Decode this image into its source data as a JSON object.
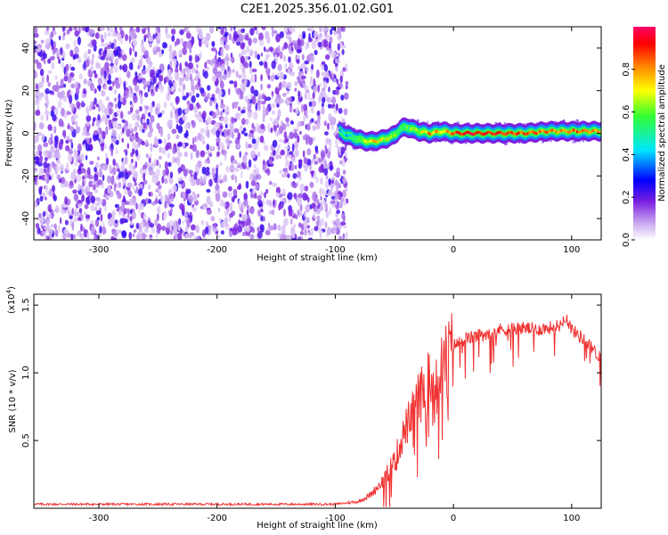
{
  "figure": {
    "title": "C2E1.2025.356.01.02.G01"
  },
  "chart_data": [
    {
      "type": "heatmap",
      "title": "C2E1.2025.356.01.02.G01",
      "xlabel": "Height of straight line (km)",
      "ylabel": "Frequency (Hz)",
      "xlim": [
        -355,
        125
      ],
      "ylim": [
        -50,
        50
      ],
      "xticks": [
        -300,
        -200,
        -100,
        0,
        100
      ],
      "yticks": [
        -40,
        -20,
        0,
        20,
        40
      ],
      "description_series": {
        "noise_region_x": [
          -355,
          -90
        ],
        "ridge": {
          "x": [
            -97,
            -90,
            -80,
            -70,
            -60,
            -50,
            -45,
            -40,
            -30,
            -20,
            -10,
            0,
            20,
            40,
            60,
            80,
            100,
            125
          ],
          "freq": [
            1,
            -1,
            -3,
            -4,
            -3,
            -1,
            2,
            3,
            1,
            0,
            1,
            0,
            0,
            0,
            0,
            1,
            1,
            1
          ],
          "amplitude": [
            0.35,
            0.45,
            0.6,
            0.75,
            0.7,
            0.6,
            0.5,
            0.55,
            0.65,
            0.8,
            0.7,
            0.9,
            0.95,
            0.9,
            0.85,
            0.8,
            0.85,
            0.8
          ]
        }
      },
      "colorbar": {
        "label": "Normalized spectral amplitude",
        "range": [
          0,
          1
        ],
        "ticks": [
          "0.0",
          "0.2",
          "0.4",
          "0.6",
          "0.8"
        ],
        "colors": [
          "#ffffff",
          "#8a2be2",
          "#0000ff",
          "#00ffff",
          "#00ff00",
          "#ffff00",
          "#ff8000",
          "#ff0000",
          "#ff0066"
        ]
      }
    },
    {
      "type": "line",
      "title": "",
      "xlabel": "Height of straight line (km)",
      "ylabel": "SNR (10 * v/v)",
      "y_multiplier": "(x10",
      "y_multiplier_exp": "4",
      "y_multiplier_close": ")",
      "xlim": [
        -355,
        125
      ],
      "ylim": [
        0,
        1.58
      ],
      "xticks": [
        -300,
        -200,
        -100,
        0,
        100
      ],
      "yticks": [
        "0.5",
        "1.0",
        "1.5"
      ],
      "color": "#f03030",
      "series": [
        {
          "name": "SNR",
          "x": [
            -355,
            -300,
            -200,
            -100,
            -80,
            -70,
            -60,
            -50,
            -40,
            -30,
            -20,
            -10,
            0,
            10,
            20,
            30,
            40,
            50,
            60,
            70,
            80,
            90,
            95,
            100,
            110,
            120,
            125
          ],
          "y": [
            0.03,
            0.03,
            0.03,
            0.03,
            0.05,
            0.1,
            0.2,
            0.35,
            0.6,
            0.8,
            0.95,
            1.05,
            1.2,
            1.25,
            1.27,
            1.3,
            1.32,
            1.33,
            1.33,
            1.32,
            1.33,
            1.35,
            1.42,
            1.32,
            1.25,
            1.15,
            1.12
          ]
        }
      ]
    }
  ]
}
